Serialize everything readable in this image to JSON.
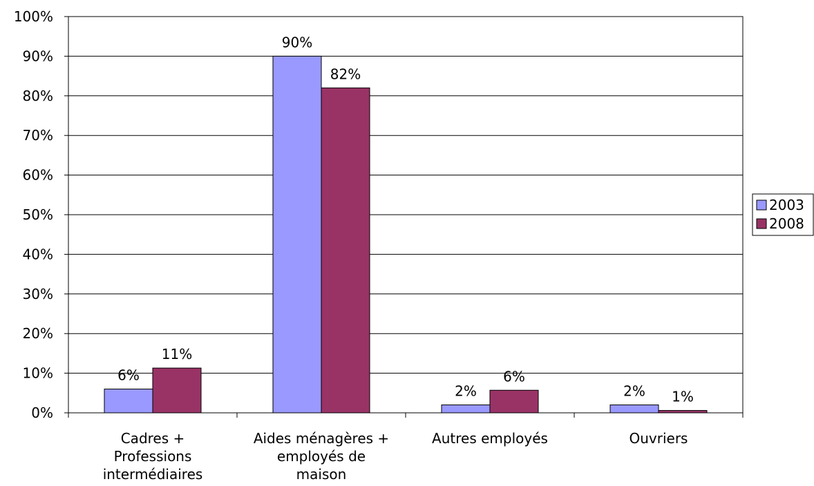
{
  "chart_data": {
    "type": "bar",
    "categories": [
      [
        "Cadres +",
        "Professions",
        "intermédiaires"
      ],
      [
        "Aides ménagères +",
        "employés de",
        "maison"
      ],
      [
        "Autres employés"
      ],
      [
        "Ouvriers"
      ]
    ],
    "series": [
      {
        "name": "2003",
        "color": "#9999ff",
        "values": [
          6,
          90,
          2,
          2
        ],
        "labels": [
          "6%",
          "90%",
          "2%",
          "2%"
        ]
      },
      {
        "name": "2008",
        "color": "#993366",
        "values": [
          11.3,
          82,
          5.7,
          0.6
        ],
        "labels": [
          "11%",
          "82%",
          "6%",
          "1%"
        ]
      }
    ],
    "ylim": [
      0,
      100
    ],
    "yticks": [
      "0%",
      "10%",
      "20%",
      "30%",
      "40%",
      "50%",
      "60%",
      "70%",
      "80%",
      "90%",
      "100%"
    ],
    "grid": true,
    "legend_position": "right"
  }
}
